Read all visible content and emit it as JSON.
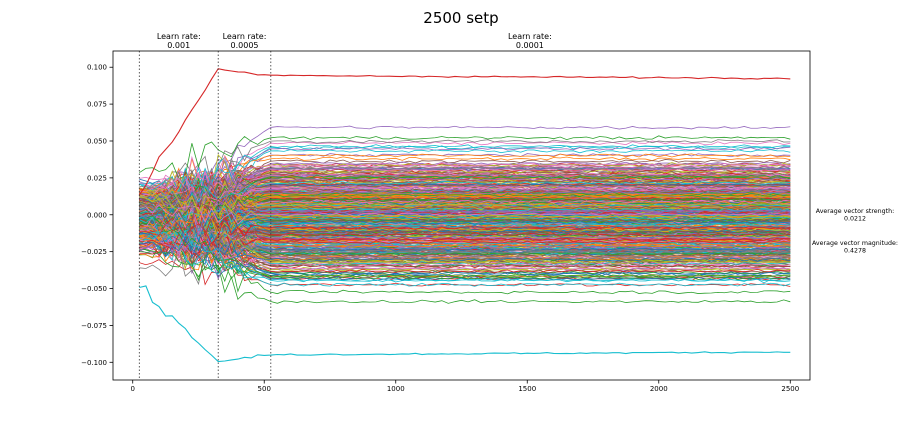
{
  "chart_data": {
    "type": "line",
    "title": "2500 setp",
    "xlabel": "",
    "ylabel": "",
    "xlim": [
      -75,
      2575
    ],
    "ylim": [
      -0.112,
      0.111
    ],
    "x_ticks": [
      0,
      500,
      1000,
      1500,
      2000,
      2500
    ],
    "y_ticks": [
      0.1,
      0.075,
      0.05,
      0.025,
      0.0,
      -0.025,
      -0.05,
      -0.075,
      -0.1
    ],
    "x_tick_labels": [
      "0",
      "500",
      "1000",
      "1500",
      "2000",
      "2500"
    ],
    "y_tick_labels": [
      "0.100",
      "0.075",
      "0.050",
      "0.025",
      "0.000",
      "−0.025",
      "−0.050",
      "−0.075",
      "−0.100"
    ],
    "grid": false,
    "legend": "none",
    "vertical_markers": [
      25,
      325,
      525
    ],
    "annotations": [
      {
        "x": 175,
        "line1": "Learn rate:",
        "line2": "0.001"
      },
      {
        "x": 425,
        "line1": "Learn rate:",
        "line2": "0.0005"
      },
      {
        "x": 1510,
        "line1": "Learn rate:",
        "line2": "0.0001"
      }
    ],
    "side_text": [
      {
        "line1": "Average vector strength:",
        "line2": "0.0212"
      },
      {
        "line1": "Average vector magnitude:",
        "line2": "0.4278"
      }
    ],
    "x_range": [
      25,
      2500
    ],
    "series_count": 500,
    "series_shape": "converging — large random fluctuation before 525, nearly flat after",
    "highlighted_series": [
      {
        "color": "#d62728",
        "start": 0.015,
        "end": 0.0925
      },
      {
        "color": "#17becf",
        "start": -0.048,
        "end": -0.093
      }
    ],
    "colors": [
      "#1f77b4",
      "#ff7f0e",
      "#2ca02c",
      "#d62728",
      "#9467bd",
      "#8c564b",
      "#e377c2",
      "#7f7f7f",
      "#bcbd22",
      "#17becf"
    ]
  }
}
